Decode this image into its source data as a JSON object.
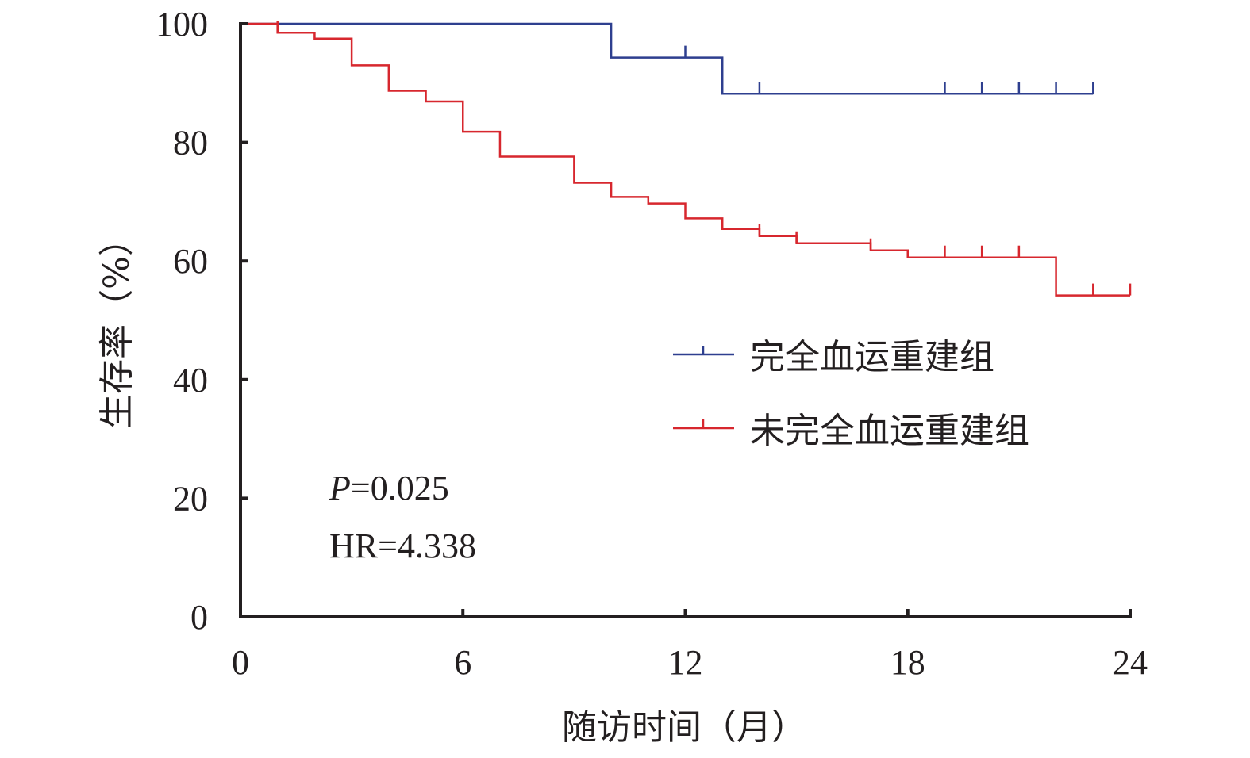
{
  "chart_data": {
    "type": "line",
    "title": "",
    "xlabel": "随访时间（月）",
    "ylabel": "生存率（%）",
    "xlim": [
      0,
      24
    ],
    "ylim": [
      0,
      100
    ],
    "xticks": [
      0,
      6,
      12,
      18,
      24
    ],
    "yticks": [
      0,
      20,
      40,
      60,
      80,
      100
    ],
    "grid": false,
    "legend_position": "center-right",
    "series": [
      {
        "name": "完全血运重建组",
        "color": "#2e3f8f",
        "steps": [
          [
            0,
            100
          ],
          [
            10,
            94.3
          ],
          [
            13,
            88.2
          ],
          [
            23,
            88.2
          ]
        ],
        "censored": [
          12,
          14,
          19,
          20,
          21,
          22,
          23
        ]
      },
      {
        "name": "未完全血运重建组",
        "color": "#d7272e",
        "steps": [
          [
            0,
            100
          ],
          [
            1,
            98.5
          ],
          [
            2,
            97.5
          ],
          [
            3,
            93.0
          ],
          [
            4,
            88.7
          ],
          [
            5,
            86.9
          ],
          [
            6,
            81.8
          ],
          [
            7,
            77.6
          ],
          [
            9,
            73.2
          ],
          [
            10,
            70.8
          ],
          [
            11,
            69.7
          ],
          [
            12,
            67.2
          ],
          [
            13,
            65.4
          ],
          [
            14,
            64.2
          ],
          [
            15,
            63.0
          ],
          [
            17,
            61.8
          ],
          [
            18,
            60.6
          ],
          [
            22,
            54.2
          ],
          [
            24,
            54.2
          ]
        ],
        "censored": [
          1,
          14,
          15,
          17,
          19,
          20,
          21,
          23,
          24
        ]
      }
    ],
    "annotations": {
      "p_label": "P",
      "p_value": "=0.025",
      "hr_text": "HR=4.338"
    }
  }
}
